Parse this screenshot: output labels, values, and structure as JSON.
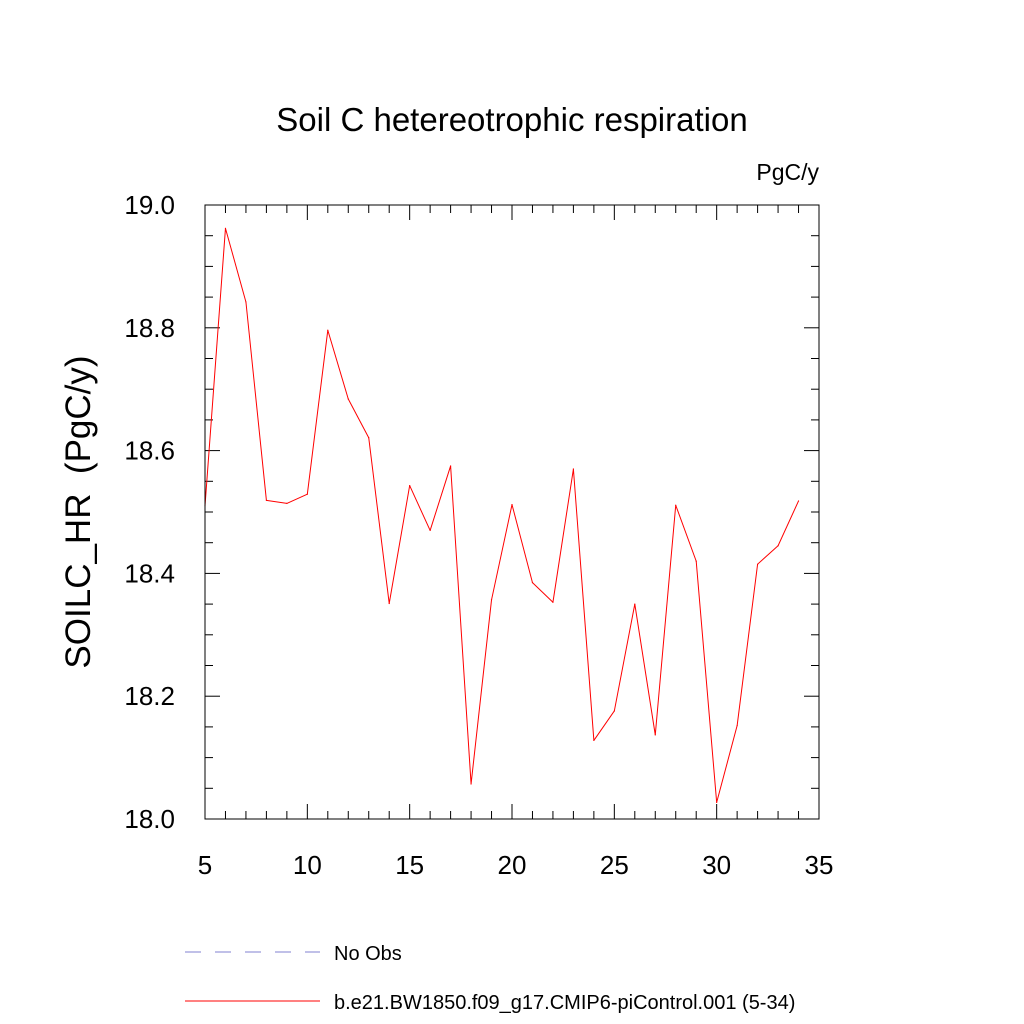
{
  "chart_data": {
    "type": "line",
    "title": "Soil C hetereotrophic respiration",
    "units": "PgC/y",
    "xlabel": "",
    "ylabel": "SOILC_HR  (PgC/y)",
    "xlim": [
      5,
      35
    ],
    "ylim": [
      18.0,
      19.0
    ],
    "x_ticks": [
      5,
      10,
      15,
      20,
      25,
      30,
      35
    ],
    "x_tick_labels": [
      "5",
      "10",
      "15",
      "20",
      "25",
      "30",
      "35"
    ],
    "y_ticks": [
      18.0,
      18.2,
      18.4,
      18.6,
      18.8,
      19.0
    ],
    "y_tick_labels": [
      "18.0",
      "18.2",
      "18.4",
      "18.6",
      "18.8",
      "19.0"
    ],
    "x_minor_step": 1,
    "y_minor_step": 0.05,
    "grid": false,
    "legend_position": "bottom-left, below plot",
    "series": [
      {
        "name": "No Obs",
        "style": "dashed",
        "color": "#8080d0",
        "x": [],
        "values": []
      },
      {
        "name": "b.e21.BW1850.f09_g17.CMIP6-piControl.001 (5-34)",
        "style": "solid",
        "color": "#ff0000",
        "x": [
          5,
          6,
          7,
          8,
          9,
          10,
          11,
          12,
          13,
          14,
          15,
          16,
          17,
          18,
          19,
          20,
          21,
          22,
          23,
          24,
          25,
          26,
          27,
          28,
          29,
          30,
          31,
          32,
          33,
          34
        ],
        "values": [
          18.51,
          18.962,
          18.842,
          18.519,
          18.514,
          18.529,
          18.796,
          18.684,
          18.621,
          18.351,
          18.543,
          18.47,
          18.575,
          18.057,
          18.357,
          18.512,
          18.385,
          18.353,
          18.57,
          18.128,
          18.176,
          18.35,
          18.137,
          18.511,
          18.42,
          18.027,
          18.152,
          18.415,
          18.445,
          18.518
        ]
      }
    ]
  }
}
